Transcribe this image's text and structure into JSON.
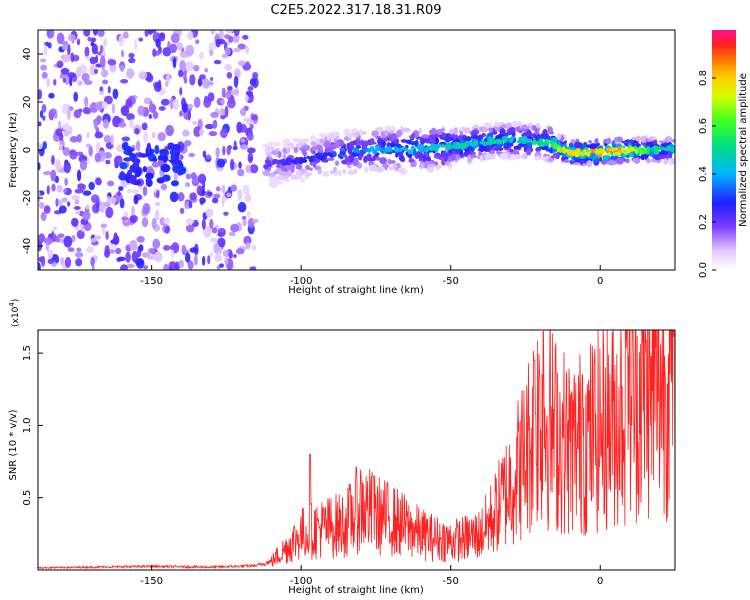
{
  "title": "C2E5.2022.317.18.31.R09",
  "colors": {
    "background": "#ffffff",
    "snr_line": "#ff2020",
    "axis": "#000000"
  },
  "chart_data": [
    {
      "type": "heatmap",
      "xlabel": "Height of straight line (km)",
      "ylabel": "Frequency (Hz)",
      "xlim": [
        -188,
        25
      ],
      "ylim": [
        -50,
        50
      ],
      "xticks": [
        -150,
        -100,
        -50,
        0
      ],
      "yticks": [
        -40,
        -20,
        0,
        20,
        40
      ],
      "grid": false,
      "noise_region_x": [
        -188,
        -115
      ],
      "ridge": {
        "x": [
          -112,
          -105,
          -95,
          -85,
          -75,
          -65,
          -55,
          -45,
          -35,
          -25,
          -18,
          -10,
          0,
          10,
          20,
          25
        ],
        "freq_hz": [
          -6,
          -5,
          -3,
          -1,
          0,
          0,
          1,
          2,
          4,
          4,
          3,
          -1,
          -1,
          0,
          0,
          0
        ],
        "amplitude": [
          0.2,
          0.25,
          0.3,
          0.35,
          0.4,
          0.45,
          0.45,
          0.5,
          0.5,
          0.5,
          0.55,
          0.8,
          0.85,
          0.8,
          0.5,
          0.5
        ]
      },
      "colorbar": {
        "label": "Normalized spectral amplitude",
        "ticks": [
          "0.0",
          "0.2",
          "0.4",
          "0.6",
          "0.8"
        ],
        "range": [
          0,
          1
        ]
      }
    },
    {
      "type": "line",
      "xlabel": "Height of straight line (km)",
      "ylabel": "SNR (10 * v/v)",
      "y_multiplier": "(x10",
      "y_multiplier_exp": "4",
      "y_multiplier_close": ")",
      "xlim": [
        -188,
        25
      ],
      "ylim": [
        0,
        16600
      ],
      "xticks": [
        -150,
        -100,
        -50,
        0
      ],
      "yticks": [
        5000,
        10000,
        15000
      ],
      "ytick_labels": [
        "0.5",
        "1.0",
        "1.5"
      ],
      "grid": false,
      "series": [
        {
          "x": [
            -188,
            -170,
            -150,
            -130,
            -115,
            -110,
            -105,
            -100,
            -95,
            -90,
            -85,
            -80,
            -75,
            -70,
            -65,
            -60,
            -55,
            -50,
            -45,
            -40,
            -35,
            -30,
            -25,
            -22,
            -20,
            -15,
            -10,
            -5,
            0,
            5,
            10,
            15,
            20,
            25
          ],
          "values": [
            150,
            200,
            250,
            200,
            300,
            600,
            1500,
            2500,
            2800,
            3000,
            3200,
            4500,
            3800,
            3500,
            3000,
            2500,
            2200,
            2000,
            2200,
            2500,
            4000,
            6000,
            8000,
            10000,
            11000,
            9500,
            8500,
            9000,
            9800,
            10500,
            12000,
            12500,
            13000,
            13500
          ],
          "peaks": [
            [
              -97,
              8000
            ],
            [
              -76,
              6500
            ],
            [
              -22,
              14500
            ],
            [
              -19,
              16500
            ],
            [
              9,
              16600
            ],
            [
              -6,
              13500
            ],
            [
              17,
              14800
            ]
          ]
        }
      ]
    }
  ]
}
